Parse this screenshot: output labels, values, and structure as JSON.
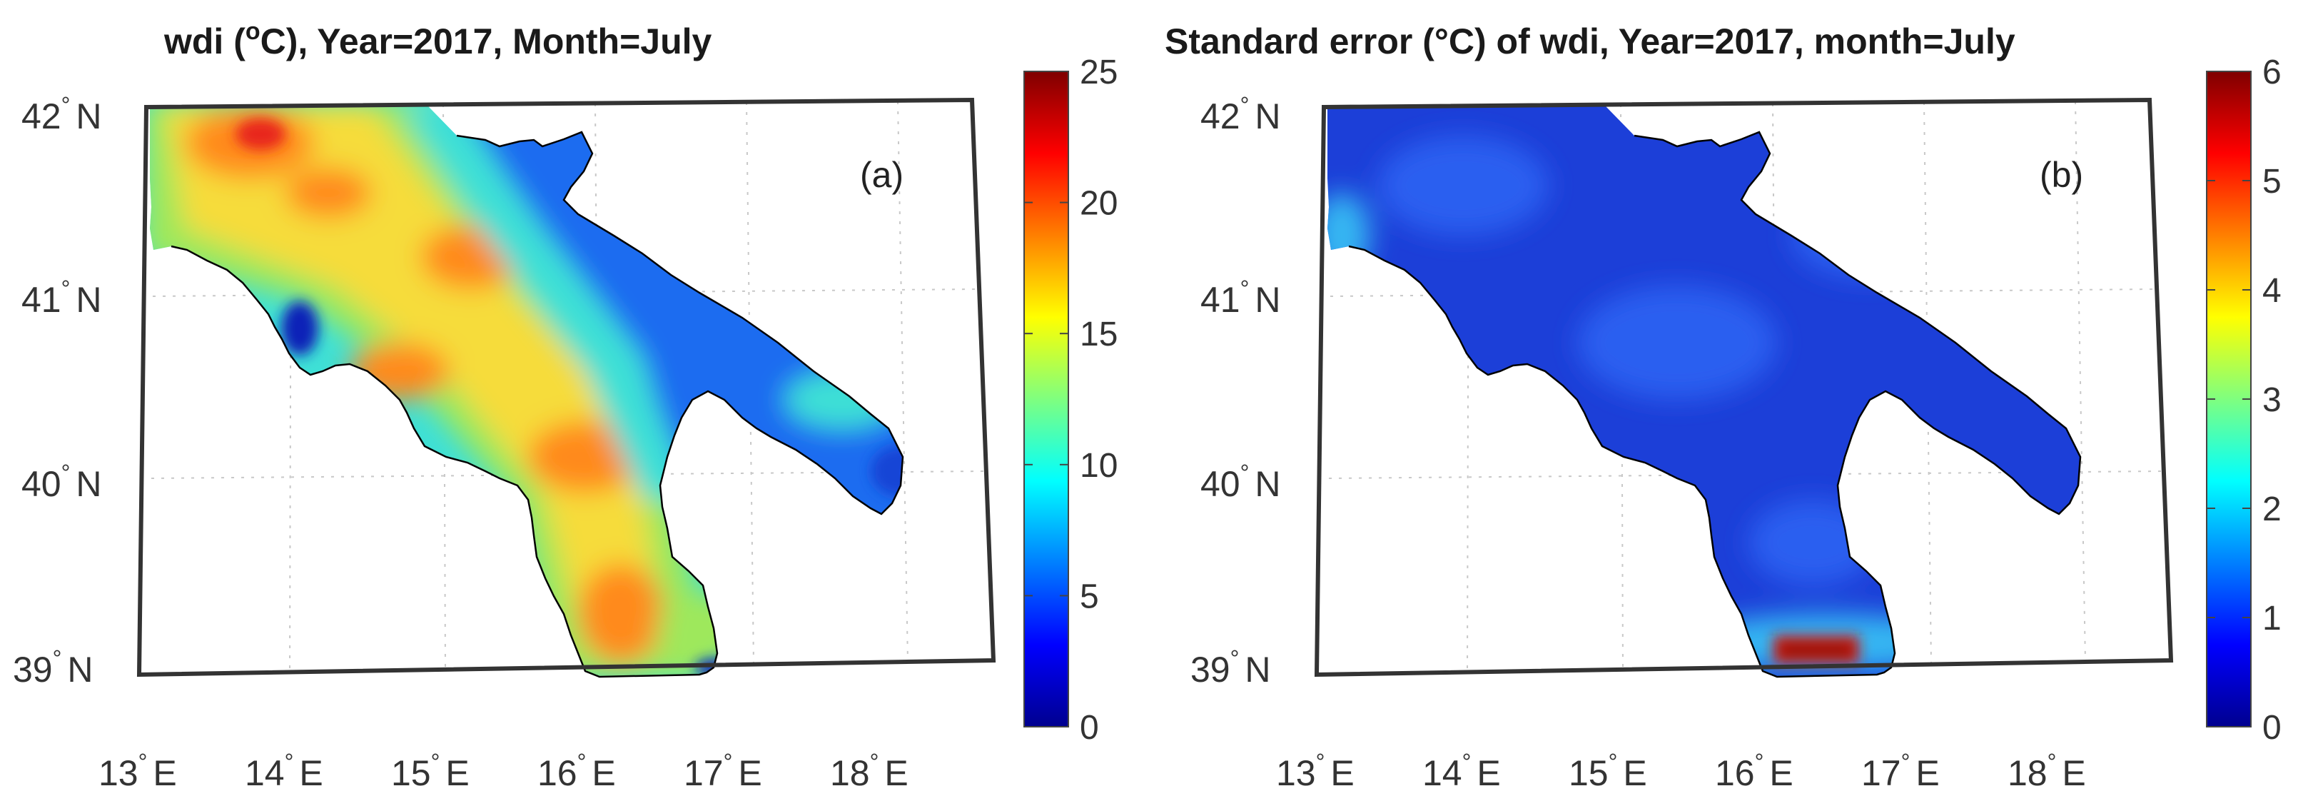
{
  "panels": [
    {
      "id": "a",
      "title_prefix": "wdi (",
      "title_unit_sup": "o",
      "title_suffix": "C), Year=2017, Month=July",
      "panel_label": "(a)",
      "colorbar": {
        "min": 0,
        "max": 25,
        "ticks": [
          "0",
          "5",
          "10",
          "15",
          "20",
          "25"
        ]
      },
      "colors": {
        "mountain": "#f6dc3a",
        "mountain_hot": "#ff8a1a",
        "hottest": "#e8261c",
        "foothill": "#9ee85c",
        "lowland": "#3ee0d6",
        "coast_blue": "#1d6cf0",
        "dark_blue": "#1020b8"
      }
    },
    {
      "id": "b",
      "title_text": "Standard error (°C) of wdi, Year=2017, month=July",
      "panel_label": "(b)",
      "colorbar": {
        "min": 0,
        "max": 6,
        "ticks": [
          "0",
          "1",
          "2",
          "3",
          "4",
          "5",
          "6"
        ]
      },
      "colors": {
        "field": "#1c3fd8",
        "field_light": "#2a5ef0",
        "edge": "#35b6f2",
        "edge_green": "#7ee05a",
        "hot": "#d11a14",
        "hot_core": "#8e0a06"
      }
    }
  ],
  "axes": {
    "lat_labels": [
      "42",
      "41",
      "40",
      "39"
    ],
    "lon_labels": [
      "13",
      "14",
      "15",
      "16",
      "17",
      "18"
    ],
    "lat_suffix": "N",
    "lon_suffix": "E",
    "degree_mark": "°"
  },
  "colormap": [
    "#00008f",
    "#0000ff",
    "#007fff",
    "#00ffff",
    "#7fff7f",
    "#ffff00",
    "#ff7f00",
    "#ff0000",
    "#7f0000"
  ]
}
